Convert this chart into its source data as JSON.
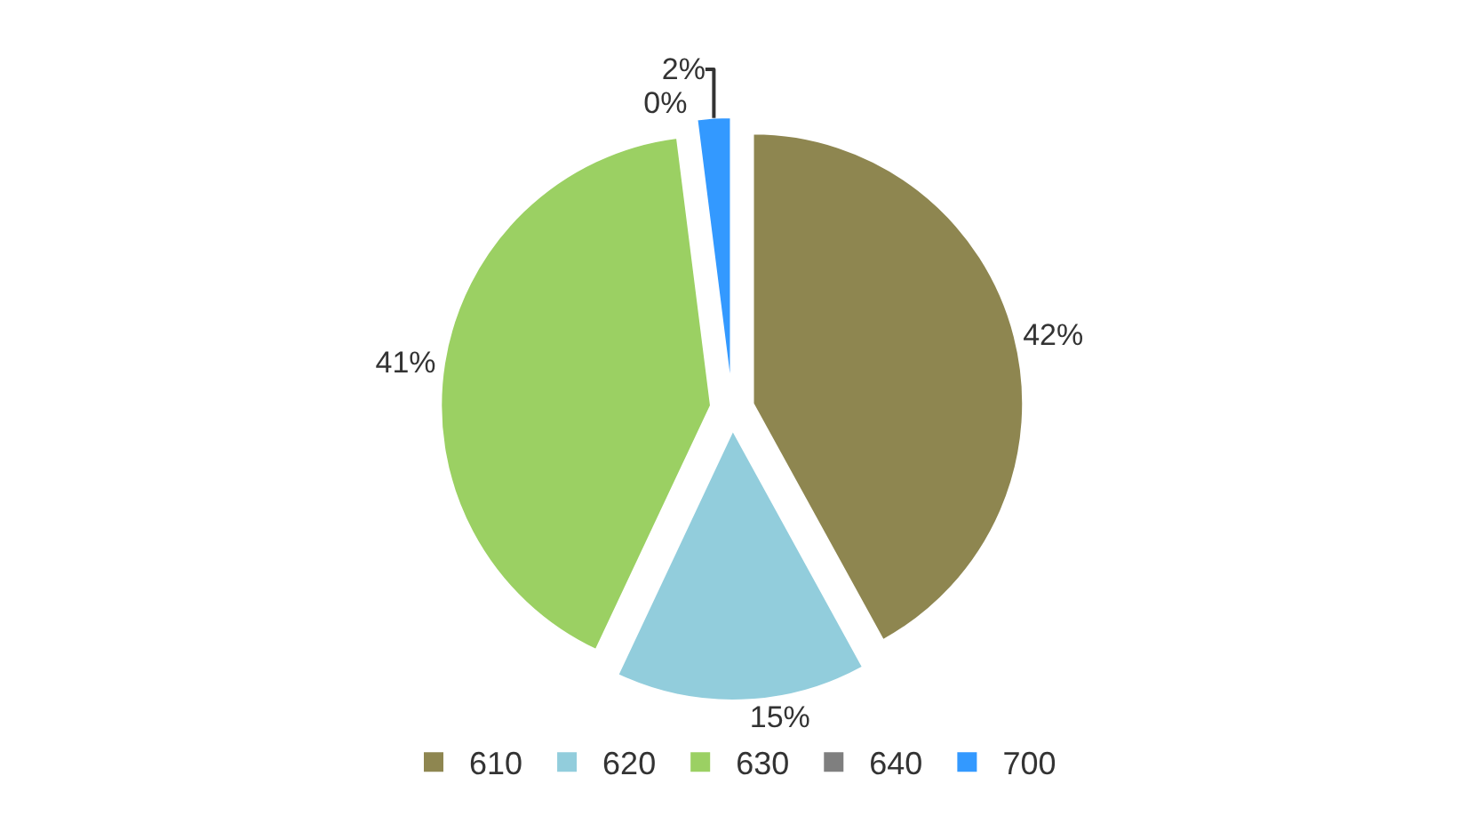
{
  "chart_data": {
    "type": "pie",
    "categories": [
      "610",
      "620",
      "630",
      "640",
      "700"
    ],
    "values": [
      42,
      15,
      41,
      0,
      2
    ],
    "value_labels": [
      "42%",
      "15%",
      "41%",
      "0%",
      "2%"
    ],
    "colors": [
      "#8e8650",
      "#92cddc",
      "#9bd063",
      "#7f7f7f",
      "#3399ff"
    ],
    "legend": "bottom"
  }
}
